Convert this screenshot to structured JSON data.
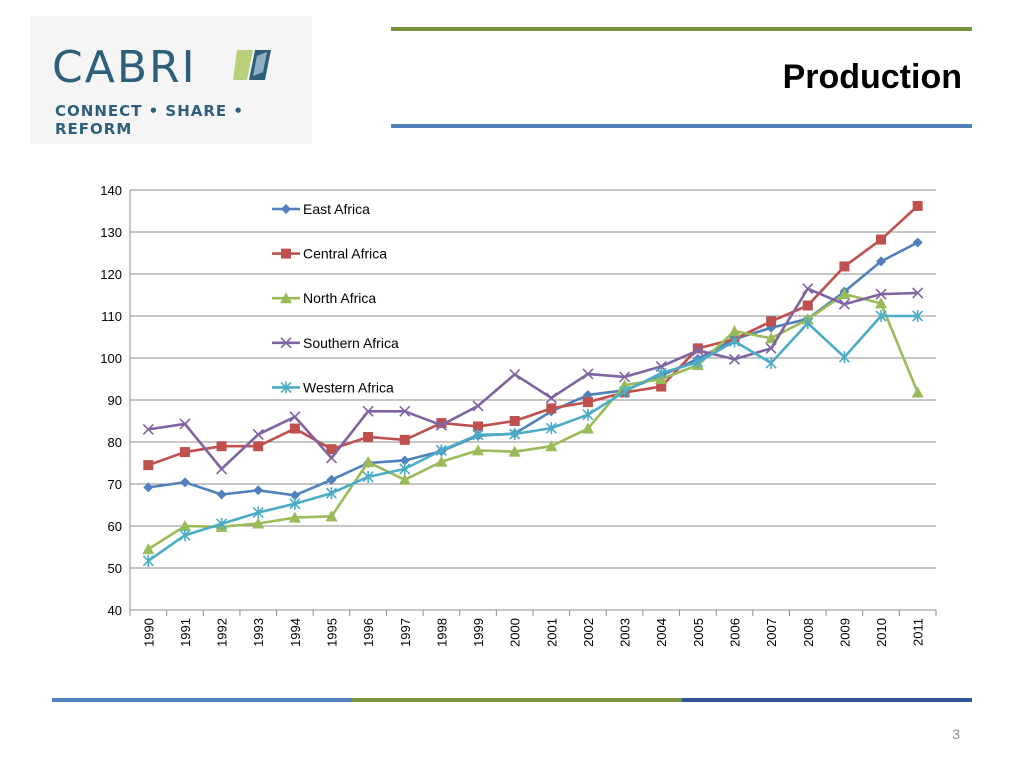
{
  "logo": {
    "wordmark": "CABRI",
    "tagline": "CONNECT • SHARE • REFORM"
  },
  "slide": {
    "title": "Production",
    "page_number": "3"
  },
  "colors": {
    "accent_green": "#77933c",
    "accent_blue": "#4f81bd",
    "logo_blue": "#2e5f7a"
  },
  "chart_data": {
    "type": "line",
    "x": [
      "1990",
      "1991",
      "1992",
      "1993",
      "1994",
      "1995",
      "1996",
      "1997",
      "1998",
      "1999",
      "2000",
      "2001",
      "2002",
      "2003",
      "2004",
      "2005",
      "2006",
      "2007",
      "2008",
      "2009",
      "2010",
      "2011"
    ],
    "ylim": [
      40,
      140
    ],
    "yticks": [
      40,
      50,
      60,
      70,
      80,
      90,
      100,
      110,
      120,
      130,
      140
    ],
    "grid": true,
    "legend_placement": "top-left",
    "series": [
      {
        "name": "East Africa",
        "color": "#4f81bd",
        "marker": "diamond",
        "values": [
          69.2,
          70.4,
          67.5,
          68.5,
          67.3,
          71.0,
          75.0,
          75.6,
          77.8,
          81.5,
          82.0,
          87.3,
          91.2,
          92.3,
          95.8,
          99.8,
          104.5,
          107.2,
          109.3,
          115.8,
          123.0,
          127.5
        ]
      },
      {
        "name": "Central Africa",
        "color": "#c0504d",
        "marker": "square",
        "values": [
          74.5,
          77.6,
          79.0,
          79.0,
          83.2,
          78.3,
          81.2,
          80.5,
          84.5,
          83.7,
          85.0,
          88.0,
          89.5,
          91.8,
          93.2,
          102.3,
          104.5,
          108.7,
          112.5,
          121.8,
          128.2,
          136.2
        ]
      },
      {
        "name": "North Africa",
        "color": "#9bbb59",
        "marker": "triangle",
        "values": [
          54.5,
          60.0,
          59.8,
          60.6,
          62.0,
          62.3,
          75.2,
          71.0,
          75.3,
          78.0,
          77.7,
          79.0,
          83.2,
          93.5,
          95.0,
          98.3,
          106.4,
          104.7,
          109.2,
          115.2,
          113.0,
          91.8
        ]
      },
      {
        "name": "Southern Africa",
        "color": "#8064a2",
        "marker": "x",
        "values": [
          83.0,
          84.3,
          73.6,
          81.8,
          86.0,
          76.2,
          87.3,
          87.3,
          84.0,
          88.6,
          96.1,
          90.5,
          96.2,
          95.5,
          98.0,
          101.8,
          99.7,
          102.3,
          116.5,
          112.8,
          115.2,
          115.5
        ]
      },
      {
        "name": "Western Africa",
        "color": "#4bacc6",
        "marker": "star",
        "values": [
          51.7,
          57.8,
          60.5,
          63.2,
          65.3,
          67.8,
          71.7,
          73.6,
          78.0,
          81.7,
          81.9,
          83.3,
          86.5,
          92.0,
          96.4,
          99.0,
          104.0,
          98.8,
          108.3,
          100.2,
          110.0,
          110.0
        ]
      }
    ]
  }
}
